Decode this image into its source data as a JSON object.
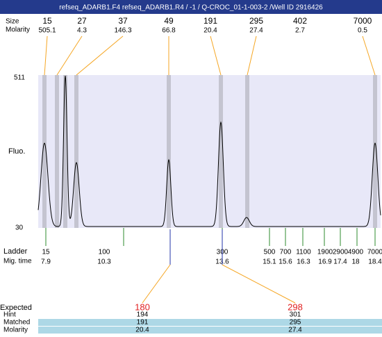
{
  "header": {
    "title": "refseq_ADARB1.F4  refseq_ADARB1.R4 / -1 / Q-CROC_01-1-003-2 /Well ID 2916426"
  },
  "peaks": {
    "labels": {
      "size": "Size",
      "molarity": "Molarity"
    },
    "size": [
      15,
      27,
      37,
      49,
      191,
      295,
      402,
      7000
    ],
    "molarity": [
      505.1,
      4.3,
      146.3,
      66.8,
      20.4,
      27.4,
      2.7,
      0.5
    ]
  },
  "plot": {
    "y_top": "511",
    "y_bottom": "30",
    "y_label": "Fluo."
  },
  "ladder": {
    "label": "Ladder",
    "mig_label": "Mig. time",
    "sizes": [
      15,
      100,
      300,
      500,
      700,
      1100,
      1900,
      2900,
      4900,
      7000
    ],
    "mig_times": [
      7.9,
      10.3,
      13.6,
      15.1,
      15.6,
      16.3,
      16.9,
      17.4,
      18,
      18.4
    ]
  },
  "expected": {
    "labels": {
      "expected": "Expected",
      "hint": "Hint",
      "matched": "Matched",
      "molarity": "Molarity"
    },
    "columns": [
      {
        "expected": 180,
        "hint": 194,
        "matched": 191,
        "molarity": 20.4
      },
      {
        "expected": 298,
        "hint": 301,
        "matched": 295,
        "molarity": 27.4
      }
    ]
  }
}
